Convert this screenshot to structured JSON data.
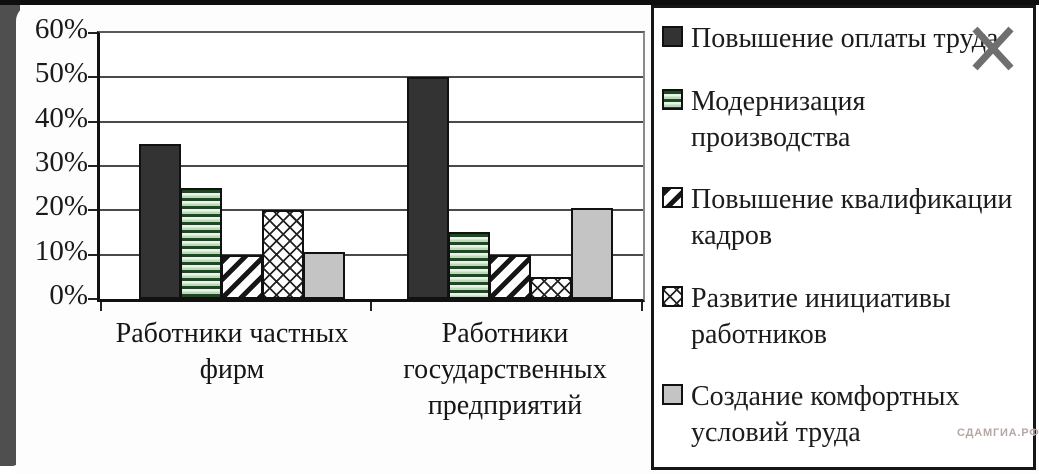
{
  "watermark": "СДАМГИА.РФ",
  "legend": {
    "items": [
      {
        "label": "Повышение оплаты труда",
        "swatch": "solid-dark"
      },
      {
        "label": "Модернизация производства",
        "swatch": "green-horizontal-stripes"
      },
      {
        "label": "Повышение квалификации кадров",
        "swatch": "black-diagonal-stripes"
      },
      {
        "label": "Развитие инициативы работников",
        "swatch": "black-crosshatch"
      },
      {
        "label": "Создание комфортных условий труда",
        "swatch": "solid-light-gray"
      }
    ]
  },
  "chart_data": {
    "type": "bar",
    "title": "",
    "xlabel": "",
    "ylabel": "",
    "categories": [
      "Работники частных фирм",
      "Работники государственных предприятий"
    ],
    "category_labels_multiline": [
      "Работники частных\nфирм",
      "Работники\nгосударственных\nпредприятий"
    ],
    "series": [
      {
        "name": "Повышение оплаты труда",
        "style": "solid-dark",
        "color": "#333333",
        "values": [
          35,
          50
        ]
      },
      {
        "name": "Модернизация производства",
        "style": "green-horizontal-stripes",
        "color": "#1b4a1e",
        "values": [
          25,
          15
        ]
      },
      {
        "name": "Повышение квалификации кадров",
        "style": "black-diagonal-stripes",
        "color": "#161616",
        "values": [
          10,
          10
        ]
      },
      {
        "name": "Развитие инициативы работников",
        "style": "black-crosshatch",
        "color": "#222222",
        "values": [
          20,
          5
        ]
      },
      {
        "name": "Создание комфортных условий труда",
        "style": "solid-light-gray",
        "color": "#c4c4c4",
        "values": [
          10.5,
          20.5
        ]
      }
    ],
    "ylim": [
      0,
      60
    ],
    "ytick_step": 10,
    "yticks": [
      "0%",
      "10%",
      "20%",
      "30%",
      "40%",
      "50%",
      "60%"
    ],
    "grid": true,
    "legend_position": "right"
  },
  "overlay": {
    "cross_mark_color": "#6f6f6f"
  }
}
